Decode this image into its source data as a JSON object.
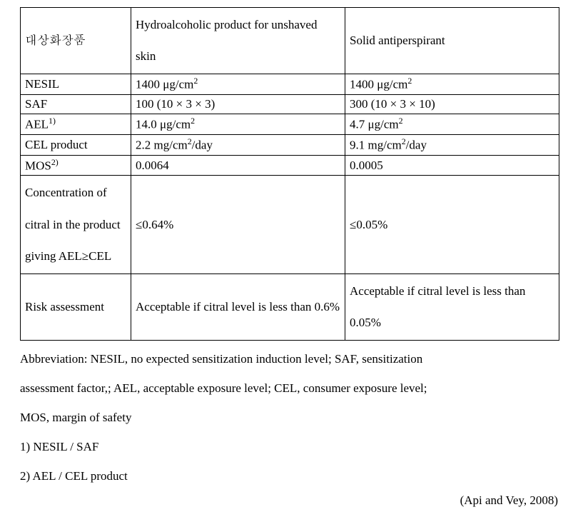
{
  "table": {
    "columns": {
      "c1_width": 155,
      "c2_width": 300,
      "c3_width": 300
    },
    "border_color": "#000000",
    "background_color": "#ffffff",
    "font_size": 17,
    "rows": {
      "r0": {
        "label": "대상화장품",
        "col2": "Hydroalcoholic product for unshaved skin",
        "col3": "Solid antiperspirant"
      },
      "r1": {
        "label": "NESIL",
        "col2": "1400 μg/cm",
        "col2_sup": "2",
        "col3": "1400 μg/cm",
        "col3_sup": "2"
      },
      "r2": {
        "label": "SAF",
        "col2": "100 (10 × 3 × 3)",
        "col3": "300 (10 × 3 × 10)"
      },
      "r3": {
        "label": "AEL",
        "label_sup": "1)",
        "col2": "14.0 μg/cm",
        "col2_sup": "2",
        "col3": "4.7 μg/cm",
        "col3_sup": "2"
      },
      "r4": {
        "label": "CEL product",
        "col2": "2.2 mg/cm",
        "col2_sup": "2",
        "col2_tail": "/day",
        "col3": "9.1 mg/cm",
        "col3_sup": "2",
        "col3_tail": "/day"
      },
      "r5": {
        "label": "MOS",
        "label_sup": "2)",
        "col2": "0.0064",
        "col3": "0.0005"
      },
      "r6": {
        "label": "Concentration of citral in the product giving AEL≥CEL",
        "col2": "≤0.64%",
        "col3": "≤0.05%"
      },
      "r7": {
        "label": "Risk assessment",
        "col2": "Acceptable if citral level is less than 0.6%",
        "col3": "Acceptable if citral level is less than 0.05%"
      }
    }
  },
  "notes": {
    "line1": "Abbreviation: NESIL, no expected sensitization induction level; SAF, sensitization",
    "line2": "assessment factor,; AEL, acceptable exposure level; CEL, consumer exposure level;",
    "line3": "MOS, margin of safety",
    "line4": "1) NESIL / SAF",
    "line5": "2) AEL / CEL product"
  },
  "citation": "(Api and Vey, 2008)"
}
